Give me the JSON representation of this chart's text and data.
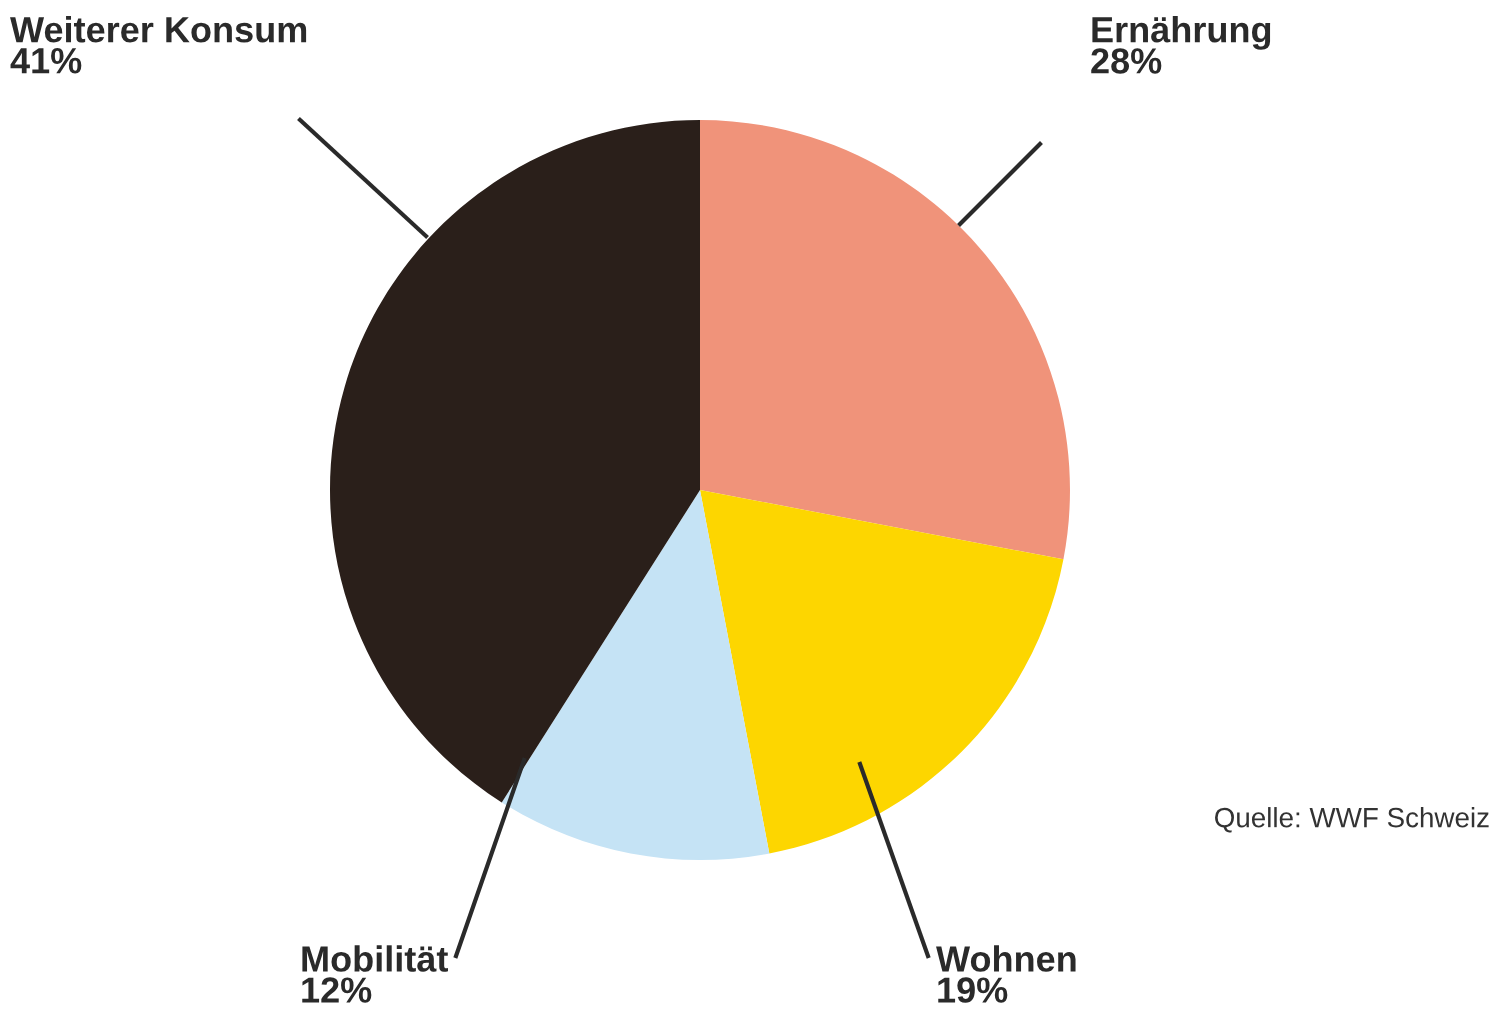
{
  "chart_data": {
    "type": "pie",
    "categories": [
      "Ernährung",
      "Wohnen",
      "Mobilität",
      "Weiterer Konsum"
    ],
    "values": [
      28,
      19,
      12,
      41
    ],
    "value_labels": [
      "28%",
      "19%",
      "12%",
      "41%"
    ],
    "colors": [
      "#f0937a",
      "#fdd600",
      "#c5e3f5",
      "#2a1f1a"
    ],
    "annotations": [
      "Quelle: WWF Schweiz"
    ]
  }
}
